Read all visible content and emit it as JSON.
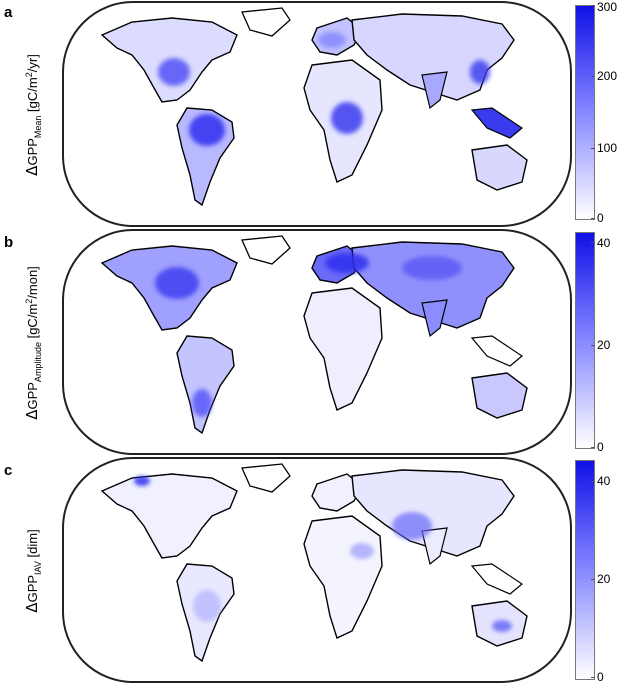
{
  "panels": [
    {
      "letter": "a",
      "ylabel_prefix": "GPP",
      "ylabel_sub": "Mean",
      "ylabel_unit_pre": "[gC/m",
      "ylabel_unit_sup": "2",
      "ylabel_unit_post": "/yr]",
      "colorbar_ticks": [
        "300",
        "200",
        "100",
        "0"
      ],
      "colorbar_range": [
        0,
        300
      ]
    },
    {
      "letter": "b",
      "ylabel_prefix": "GPP",
      "ylabel_sub": "Amplitude",
      "ylabel_unit_pre": "[gC/m",
      "ylabel_unit_sup": "2",
      "ylabel_unit_post": "/mon]",
      "colorbar_ticks": [
        "40",
        "20",
        "0"
      ],
      "colorbar_range": [
        0,
        40
      ]
    },
    {
      "letter": "c",
      "ylabel_prefix": "GPP",
      "ylabel_sub": "IAV",
      "ylabel_unit_pre": "[dim]",
      "ylabel_unit_sup": "",
      "ylabel_unit_post": "",
      "colorbar_ticks": [
        "40",
        "20",
        "0"
      ],
      "colorbar_range": [
        0,
        40
      ]
    }
  ],
  "colors": {
    "high": "#1010e6",
    "mid": "#7a7cff",
    "low": "#ffffff",
    "coast": "#000000"
  }
}
